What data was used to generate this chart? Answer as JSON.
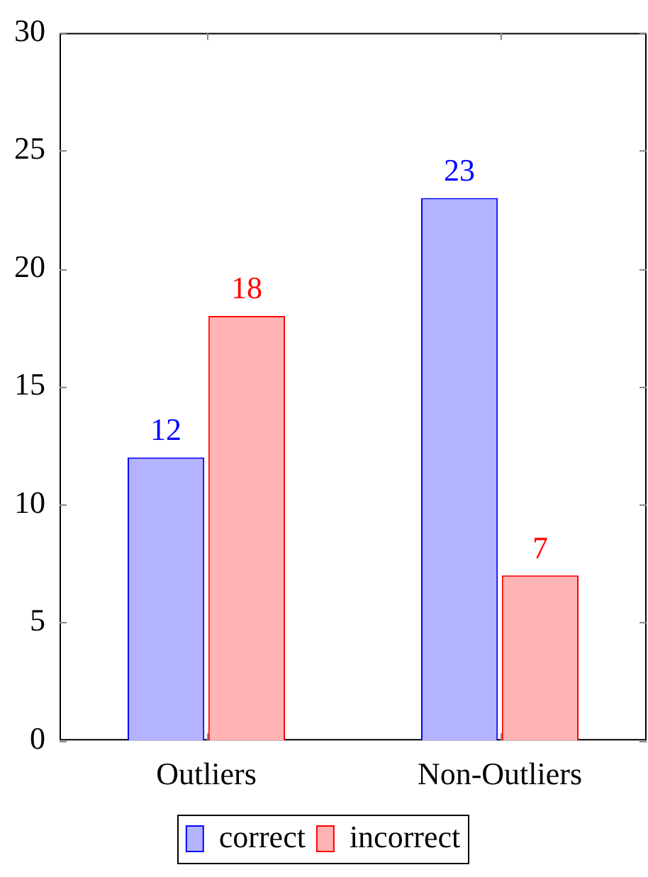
{
  "chart_data": {
    "type": "bar",
    "categories": [
      "Outliers",
      "Non-Outliers"
    ],
    "series": [
      {
        "name": "correct",
        "color": "#b3b3ff",
        "values": [
          12,
          23
        ]
      },
      {
        "name": "incorrect",
        "color": "#ffb3b3",
        "values": [
          18,
          7
        ]
      }
    ],
    "ylim": [
      0,
      30
    ],
    "yticks": [
      0,
      5,
      10,
      15,
      20,
      25,
      30
    ],
    "grid": false,
    "legend": "bottom",
    "data_labels": true
  }
}
